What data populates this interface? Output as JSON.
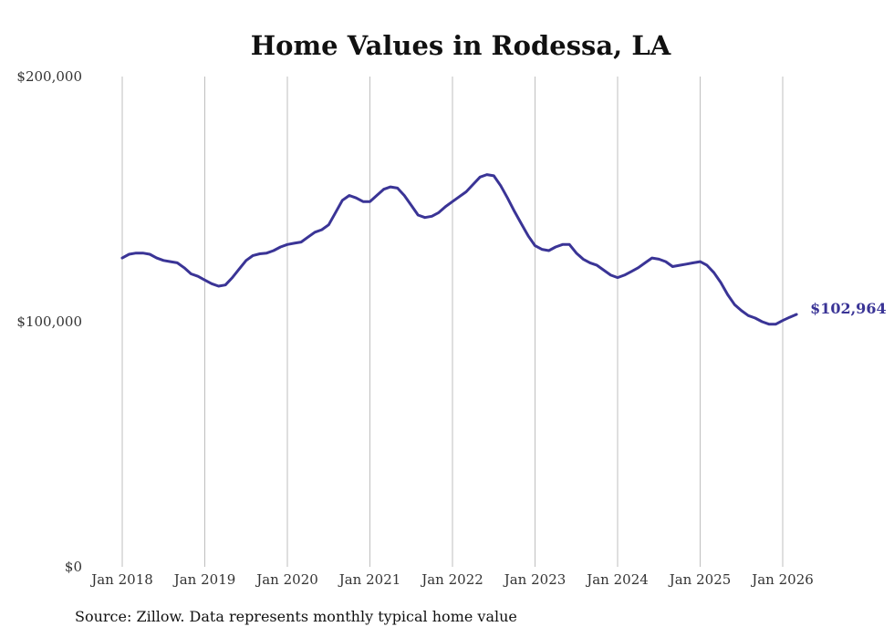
{
  "chart_data": {
    "type": "line",
    "title": "Home Values in Rodessa, LA",
    "xlabel": "",
    "ylabel": "",
    "ylim": [
      0,
      200000
    ],
    "yticks": [
      "$0",
      "$100,000",
      "$200,000"
    ],
    "xticks": [
      "Jan 2018",
      "Jan 2019",
      "Jan 2020",
      "Jan 2021",
      "Jan 2022",
      "Jan 2023",
      "Jan 2024",
      "Jan 2025",
      "Jan 2026"
    ],
    "grid": "vertical",
    "line_color": "#3a3496",
    "end_label": "$102,964",
    "series": [
      {
        "x": [
          "2018-01",
          "2018-02",
          "2018-03",
          "2018-04",
          "2018-05",
          "2018-06",
          "2018-07",
          "2018-08",
          "2018-09",
          "2018-10",
          "2018-11",
          "2018-12",
          "2019-01",
          "2019-02",
          "2019-03",
          "2019-04",
          "2019-05",
          "2019-06",
          "2019-07",
          "2019-08",
          "2019-09",
          "2019-10",
          "2019-11",
          "2019-12",
          "2020-01",
          "2020-02",
          "2020-03",
          "2020-04",
          "2020-05",
          "2020-06",
          "2020-07",
          "2020-08",
          "2020-09",
          "2020-10",
          "2020-11",
          "2020-12",
          "2021-01",
          "2021-02",
          "2021-03",
          "2021-04",
          "2021-05",
          "2021-06",
          "2021-07",
          "2021-08",
          "2021-09",
          "2021-10",
          "2021-11",
          "2021-12",
          "2022-01",
          "2022-02",
          "2022-03",
          "2022-04",
          "2022-05",
          "2022-06",
          "2022-07",
          "2022-08",
          "2022-09",
          "2022-10",
          "2022-11",
          "2022-12",
          "2023-01",
          "2023-02",
          "2023-03",
          "2023-04",
          "2023-05",
          "2023-06",
          "2023-07",
          "2023-08",
          "2023-09",
          "2023-10",
          "2023-11",
          "2023-12",
          "2024-01",
          "2024-02",
          "2024-03",
          "2024-04",
          "2024-05",
          "2024-06",
          "2024-07",
          "2024-08",
          "2024-09",
          "2024-10",
          "2024-11",
          "2024-12",
          "2025-01",
          "2025-02",
          "2025-03",
          "2025-04",
          "2025-05",
          "2025-06",
          "2025-07",
          "2025-08",
          "2025-09",
          "2025-10",
          "2025-11",
          "2025-12",
          "2026-01",
          "2026-02",
          "2026-03"
        ],
        "values": [
          126000,
          127500,
          128000,
          128000,
          127500,
          126000,
          125000,
          124500,
          124000,
          122000,
          119500,
          118500,
          117000,
          115500,
          114500,
          115000,
          118000,
          121500,
          125000,
          127000,
          127700,
          128000,
          129000,
          130500,
          131500,
          132000,
          132500,
          134500,
          136500,
          137500,
          139500,
          144500,
          149500,
          151500,
          150500,
          149000,
          149000,
          151500,
          154000,
          155000,
          154500,
          151500,
          147500,
          143500,
          142500,
          143000,
          144500,
          147000,
          149000,
          151000,
          153000,
          156000,
          159000,
          160000,
          159500,
          155500,
          150500,
          145000,
          140000,
          135000,
          131000,
          129500,
          129000,
          130500,
          131500,
          131500,
          128000,
          125500,
          124000,
          123000,
          121000,
          119000,
          118000,
          119000,
          120500,
          122000,
          124000,
          126000,
          125500,
          124500,
          122500,
          123000,
          123500,
          124000,
          124500,
          123000,
          120000,
          116000,
          111000,
          107000,
          104500,
          102500,
          101500,
          100000,
          99000,
          99000,
          100500,
          101800,
          102964
        ]
      }
    ]
  },
  "source_text": "Source: Zillow. Data represents monthly typical home value"
}
